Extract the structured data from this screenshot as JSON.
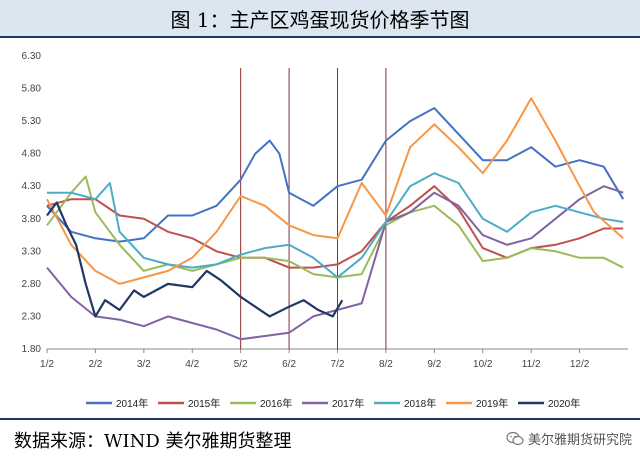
{
  "header": {
    "title": "图 1：主产区鸡蛋现货价格季节图"
  },
  "footer": {
    "source": "数据来源：WIND  美尔雅期货整理",
    "watermark": "美尔雅期货研究院"
  },
  "colors": {
    "header_bg": "#dce6f0",
    "rule": "#1f3864",
    "vline": "#8b2e2e"
  },
  "chart_data": {
    "type": "line",
    "title": "",
    "xlabel": "",
    "ylabel": "",
    "x_ticks": [
      "1/2",
      "2/2",
      "3/2",
      "4/2",
      "5/2",
      "6/2",
      "7/2",
      "8/2",
      "9/2",
      "10/2",
      "11/2",
      "12/2"
    ],
    "y_ticks": [
      "1.80",
      "2.30",
      "2.80",
      "3.30",
      "3.80",
      "4.30",
      "4.80",
      "5.30",
      "5.80",
      "6.30"
    ],
    "ylim": [
      1.8,
      6.3
    ],
    "xlim": [
      1,
      13
    ],
    "grid": false,
    "legend_position": "bottom",
    "vertical_markers": [
      5,
      6,
      7,
      8
    ],
    "series": [
      {
        "name": "2014年",
        "color": "#4472c4",
        "x": [
          1,
          1.5,
          2,
          2.5,
          3,
          3.5,
          4,
          4.5,
          5,
          5.3,
          5.6,
          5.8,
          6,
          6.5,
          7,
          7.5,
          8,
          8.5,
          9,
          9.5,
          10,
          10.5,
          11,
          11.5,
          12,
          12.5,
          12.9
        ],
        "y": [
          4.0,
          3.6,
          3.5,
          3.45,
          3.5,
          3.85,
          3.85,
          4.0,
          4.4,
          4.8,
          5.0,
          4.8,
          4.2,
          4.0,
          4.3,
          4.4,
          5.0,
          5.3,
          5.5,
          5.1,
          4.7,
          4.7,
          4.9,
          4.6,
          4.7,
          4.6,
          4.1
        ]
      },
      {
        "name": "2015年",
        "color": "#c0504d",
        "x": [
          1,
          1.5,
          2,
          2.5,
          3,
          3.5,
          4,
          4.5,
          5,
          5.5,
          6,
          6.5,
          7,
          7.5,
          8,
          8.5,
          9,
          9.5,
          10,
          10.5,
          11,
          11.5,
          12,
          12.5,
          12.9
        ],
        "y": [
          4.0,
          4.1,
          4.1,
          3.85,
          3.8,
          3.6,
          3.5,
          3.3,
          3.2,
          3.2,
          3.05,
          3.05,
          3.1,
          3.3,
          3.75,
          4.0,
          4.3,
          3.95,
          3.35,
          3.2,
          3.35,
          3.4,
          3.5,
          3.65,
          3.65
        ]
      },
      {
        "name": "2016年",
        "color": "#9bbb59",
        "x": [
          1,
          1.3,
          1.5,
          1.8,
          2,
          2.5,
          3,
          3.5,
          4,
          4.5,
          5,
          5.5,
          6,
          6.5,
          7,
          7.5,
          8,
          8.5,
          9,
          9.5,
          10,
          10.5,
          11,
          11.5,
          12,
          12.5,
          12.9
        ],
        "y": [
          3.7,
          4.0,
          4.2,
          4.45,
          3.9,
          3.4,
          3.0,
          3.1,
          3.0,
          3.1,
          3.2,
          3.2,
          3.15,
          2.95,
          2.9,
          2.95,
          3.7,
          3.9,
          4.0,
          3.7,
          3.15,
          3.2,
          3.35,
          3.3,
          3.2,
          3.2,
          3.05
        ]
      },
      {
        "name": "2017年",
        "color": "#8064a2",
        "x": [
          1,
          1.5,
          2,
          2.5,
          3,
          3.5,
          4,
          4.5,
          5,
          5.5,
          6,
          6.5,
          7,
          7.5,
          8,
          8.5,
          9,
          9.5,
          10,
          10.5,
          11,
          11.5,
          12,
          12.5,
          12.9
        ],
        "y": [
          3.05,
          2.6,
          2.3,
          2.25,
          2.15,
          2.3,
          2.2,
          2.1,
          1.95,
          2.0,
          2.05,
          2.3,
          2.4,
          2.5,
          3.75,
          3.9,
          4.2,
          4.0,
          3.55,
          3.4,
          3.5,
          3.8,
          4.1,
          4.3,
          4.2
        ]
      },
      {
        "name": "2018年",
        "color": "#4bacc6",
        "x": [
          1,
          1.5,
          2,
          2.3,
          2.5,
          3,
          3.5,
          4,
          4.5,
          5,
          5.5,
          6,
          6.5,
          7,
          7.5,
          8,
          8.5,
          9,
          9.5,
          10,
          10.5,
          11,
          11.5,
          12,
          12.5,
          12.9
        ],
        "y": [
          4.2,
          4.2,
          4.1,
          4.35,
          3.6,
          3.2,
          3.1,
          3.05,
          3.1,
          3.25,
          3.35,
          3.4,
          3.2,
          2.9,
          3.2,
          3.75,
          4.3,
          4.5,
          4.35,
          3.8,
          3.6,
          3.9,
          4.0,
          3.9,
          3.8,
          3.75
        ]
      },
      {
        "name": "2019年",
        "color": "#f79646",
        "x": [
          1,
          1.5,
          2,
          2.5,
          3,
          3.5,
          4,
          4.5,
          5,
          5.5,
          6,
          6.5,
          7,
          7.5,
          8,
          8.5,
          9,
          9.5,
          10,
          10.5,
          11,
          11.5,
          12,
          12.3,
          12.6,
          12.9
        ],
        "y": [
          4.1,
          3.4,
          3.0,
          2.8,
          2.9,
          3.0,
          3.2,
          3.6,
          4.15,
          4.0,
          3.7,
          3.55,
          3.5,
          4.35,
          3.85,
          4.9,
          5.25,
          4.9,
          4.5,
          5.0,
          5.65,
          5.0,
          4.3,
          3.9,
          3.7,
          3.5
        ]
      },
      {
        "name": "2020年",
        "color": "#1f3864",
        "x": [
          1,
          1.2,
          1.4,
          1.6,
          1.8,
          2,
          2.2,
          2.5,
          2.8,
          3,
          3.5,
          4,
          4.3,
          4.6,
          5,
          5.3,
          5.6,
          6,
          6.3,
          6.6,
          6.9,
          7.1
        ],
        "y": [
          3.85,
          4.05,
          3.7,
          3.4,
          2.8,
          2.3,
          2.55,
          2.4,
          2.7,
          2.6,
          2.8,
          2.75,
          3.0,
          2.85,
          2.6,
          2.45,
          2.3,
          2.45,
          2.55,
          2.4,
          2.3,
          2.55
        ]
      }
    ]
  }
}
